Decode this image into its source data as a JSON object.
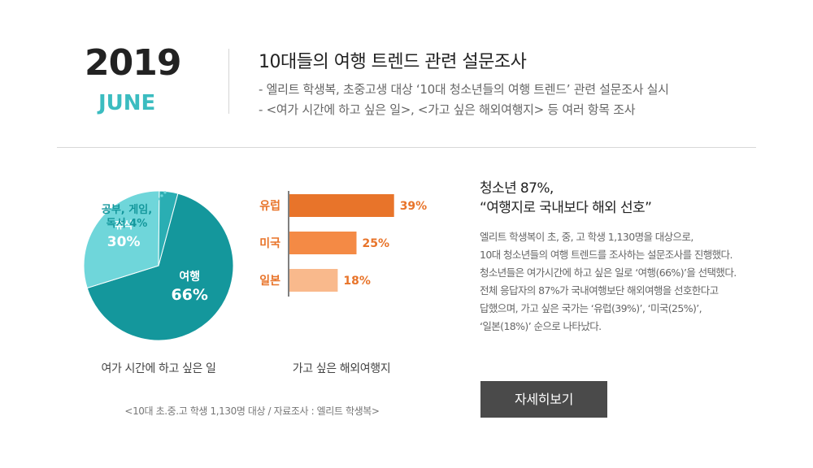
{
  "header": {
    "year": "2019",
    "month": "JUNE",
    "title": "10대들의 여행 트렌드 관련 설문조사",
    "sub1": "-  엘리트 학생복, 초중고생 대상 ‘10대 청소년들의 여행 트렌드’ 관련 설문조사 실시",
    "sub2": "-  <여가 시간에 하고 싶은 일>, <가고 싶은 해외여행지> 등 여러 항목 조사"
  },
  "chart_data": [
    {
      "type": "pie",
      "caption": "여가 시간에 하고 싶은 일",
      "slices": [
        {
          "label": "여행",
          "value": 66,
          "display": "66%",
          "color": "#14979c"
        },
        {
          "label": "휴식",
          "value": 30,
          "display": "30%",
          "color": "#6fd6da"
        },
        {
          "label": "공부, 게임, 독서",
          "label_line1": "공부, 게임,",
          "label_line2": "독서 4%",
          "value": 4,
          "display": "4%",
          "color": "#2aaeb3"
        }
      ]
    },
    {
      "type": "bar",
      "orientation": "horizontal",
      "caption": "가고 싶은 해외여행지",
      "categories": [
        "유럽",
        "미국",
        "일본"
      ],
      "values": [
        39,
        25,
        18
      ],
      "labels": [
        "39%",
        "25%",
        "18%"
      ],
      "colors": [
        "#e8742a",
        "#f48a45",
        "#f9b98c"
      ]
    }
  ],
  "source": "<10대 초.중.고 학생 1,130명 대상 / 자료조사 : 엘리트 학생복>",
  "summary": {
    "headline1": "청소년 87%,",
    "headline2": "“여행지로 국내보다 해외 선호”",
    "body": [
      "엘리트 학생복이 초, 중, 고 학생 1,130명을 대상으로,",
      "10대 청소년들의 여행 트렌드를 조사하는 설문조사를 진행했다.",
      "청소년들은 여가시간에 하고 싶은 일로 ‘여행(66%)’을 선택했다.",
      "전체 응답자의 87%가 국내여행보단 해외여행을 선호한다고",
      "답했으며, 가고 싶은 국가는 ‘유럽(39%)’, ‘미국(25%)’,",
      "‘일본(18%)’ 순으로 나타났다."
    ],
    "button": "자세히보기"
  }
}
